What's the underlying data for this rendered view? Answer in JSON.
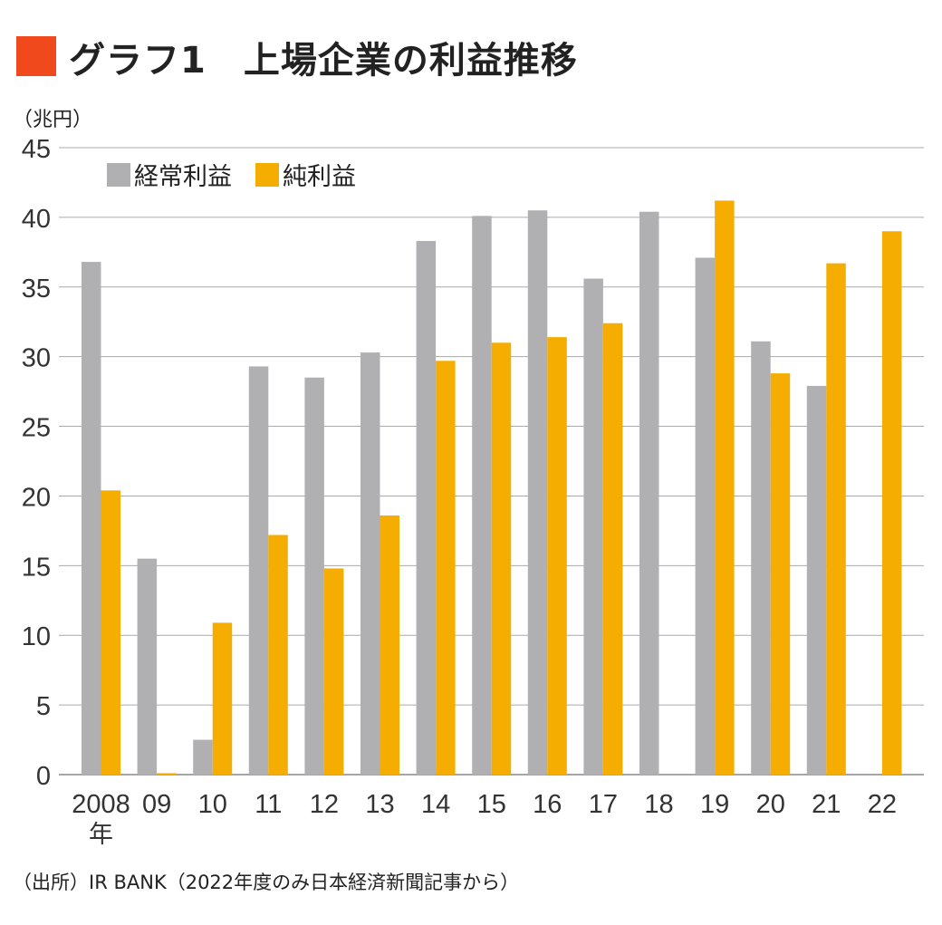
{
  "title": "グラフ1　上場企業の利益推移",
  "source": "（出所）IR BANK（2022年度のみ日本経済新聞記事から）",
  "colors": {
    "title_mark": "#f04a1c",
    "ordinary": "#b0b0b2",
    "net": "#f4ad00"
  },
  "chart_data": {
    "type": "bar",
    "title": "グラフ1　上場企業の利益推移",
    "ylabel": "（兆円）",
    "xlabel": "",
    "ylim": [
      0,
      45
    ],
    "yticks": [
      "0",
      "5",
      "10",
      "15",
      "20",
      "25",
      "30",
      "35",
      "40",
      "45"
    ],
    "grid": true,
    "legend": "top-left",
    "categories": [
      "2008",
      "09",
      "10",
      "11",
      "12",
      "13",
      "14",
      "15",
      "16",
      "17",
      "18",
      "19",
      "20",
      "21",
      "22"
    ],
    "category_suffix": "年",
    "series": [
      {
        "name": "経常利益",
        "values": [
          36.8,
          15.5,
          2.5,
          29.3,
          28.5,
          30.3,
          38.3,
          40.1,
          40.5,
          35.6,
          40.4,
          37.1,
          31.1,
          27.9,
          null
        ]
      },
      {
        "name": "純利益",
        "values": [
          20.4,
          0.1,
          10.9,
          17.2,
          14.8,
          18.6,
          29.7,
          31.0,
          31.4,
          32.4,
          null,
          41.2,
          28.8,
          36.7,
          39.0
        ]
      }
    ]
  }
}
